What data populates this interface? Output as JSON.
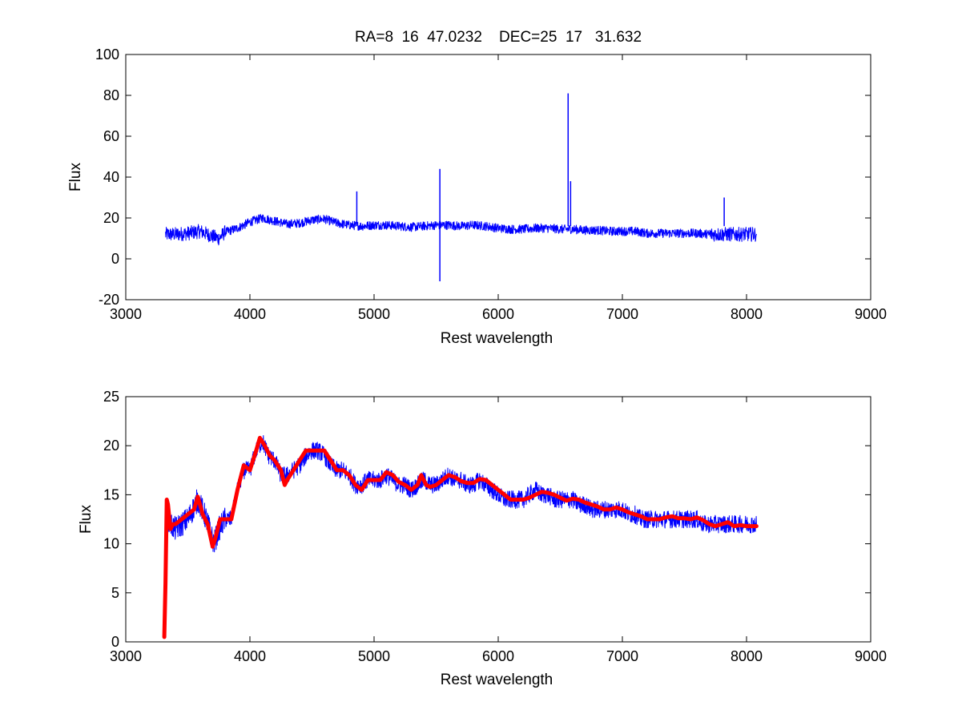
{
  "figure": {
    "title": "RA=8  16  47.0232    DEC=25  17   31.632"
  },
  "colors": {
    "spectrum": "#0000ff",
    "fit": "#ff0000",
    "axes": "#000000",
    "background": "#ffffff"
  },
  "chart_data": [
    {
      "type": "line",
      "title": "RA=8  16  47.0232    DEC=25  17   31.632",
      "xlabel": "Rest wavelength",
      "ylabel": "Flux",
      "xlim": [
        3000,
        9000
      ],
      "ylim": [
        -20,
        100
      ],
      "xticks": [
        3000,
        4000,
        5000,
        6000,
        7000,
        8000,
        9000
      ],
      "yticks": [
        -20,
        0,
        20,
        40,
        60,
        80,
        100
      ],
      "grid": false,
      "series": [
        {
          "color": "#0000ff",
          "x": [
            3320,
            3400,
            3500,
            3600,
            3700,
            3750,
            3800,
            3900,
            4000,
            4100,
            4200,
            4300,
            4400,
            4500,
            4600,
            4700,
            4800,
            4900,
            5000,
            5100,
            5200,
            5300,
            5400,
            5500,
            5600,
            5700,
            5800,
            5900,
            6000,
            6100,
            6200,
            6300,
            6400,
            6500,
            6600,
            6700,
            6800,
            6900,
            7000,
            7100,
            7200,
            7300,
            7400,
            7500,
            7600,
            7700,
            7800,
            7900,
            8000,
            8080
          ],
          "y": [
            12,
            12,
            12.5,
            13.5,
            11,
            10,
            13,
            15,
            18,
            20,
            18.5,
            17,
            17.5,
            19,
            19.5,
            17.5,
            16.5,
            16,
            16.5,
            16.5,
            16,
            15.5,
            16,
            16.5,
            16.5,
            16,
            16.5,
            16,
            15,
            14.5,
            14.5,
            15,
            15,
            14.5,
            14.5,
            14,
            14,
            13.5,
            13.5,
            13.5,
            12.5,
            12.5,
            12.5,
            12.5,
            12.5,
            12,
            12,
            12,
            12,
            12
          ],
          "spikes": [
            {
              "x": 4861,
              "y": 33
            },
            {
              "x": 5530,
              "y": 44
            },
            {
              "x": 5530,
              "y": -11
            },
            {
              "x": 6563,
              "y": 81
            },
            {
              "x": 6583,
              "y": 38
            },
            {
              "x": 7820,
              "y": 30
            }
          ]
        }
      ]
    },
    {
      "type": "line",
      "xlabel": "Rest wavelength",
      "ylabel": "Flux",
      "xlim": [
        3000,
        9000
      ],
      "ylim": [
        0,
        25
      ],
      "xticks": [
        3000,
        4000,
        5000,
        6000,
        7000,
        8000,
        9000
      ],
      "yticks": [
        0,
        5,
        10,
        15,
        20,
        25
      ],
      "grid": false,
      "series": [
        {
          "color": "#0000ff",
          "noise": 0.9,
          "x": [
            3320,
            3360,
            3400,
            3500,
            3580,
            3650,
            3710,
            3750,
            3800,
            3850,
            3900,
            3950,
            4000,
            4050,
            4100,
            4150,
            4200,
            4250,
            4300,
            4350,
            4400,
            4450,
            4500,
            4550,
            4600,
            4650,
            4700,
            4750,
            4800,
            4850,
            4900,
            4950,
            5000,
            5050,
            5100,
            5150,
            5200,
            5250,
            5300,
            5350,
            5400,
            5450,
            5500,
            5550,
            5600,
            5650,
            5700,
            5750,
            5800,
            5850,
            5900,
            5950,
            6000,
            6050,
            6100,
            6150,
            6200,
            6250,
            6300,
            6350,
            6400,
            6450,
            6500,
            6550,
            6600,
            6650,
            6700,
            6750,
            6800,
            6850,
            6900,
            6950,
            7000,
            7050,
            7100,
            7150,
            7200,
            7250,
            7300,
            7350,
            7400,
            7450,
            7500,
            7550,
            7600,
            7650,
            7700,
            7750,
            7800,
            7850,
            7900,
            7950,
            8000,
            8080
          ],
          "y": [
            13,
            12,
            11.5,
            12.5,
            14.5,
            12.5,
            10,
            11.5,
            12.5,
            12.5,
            15.5,
            17.5,
            17.5,
            19.5,
            20.5,
            19,
            18.5,
            17,
            17,
            17.5,
            18,
            19,
            19.5,
            19.5,
            19,
            18,
            17.5,
            17.5,
            17,
            16,
            16,
            16.5,
            16.5,
            16.5,
            17,
            16.5,
            16,
            16,
            15.5,
            16,
            16.5,
            16,
            16,
            16.5,
            17,
            16.5,
            16.5,
            16,
            16,
            16.5,
            16,
            15.5,
            15,
            14.5,
            14.5,
            14.5,
            14.5,
            15,
            15.5,
            15,
            15,
            14.5,
            14.5,
            14.5,
            14.5,
            14,
            14,
            13.5,
            13.5,
            13.5,
            13.5,
            13.5,
            13.5,
            13,
            13,
            12.5,
            12.5,
            12.5,
            12.5,
            12.5,
            12.5,
            12.5,
            12.5,
            12.5,
            12.5,
            12,
            12,
            12,
            12,
            12,
            12,
            12,
            12,
            12
          ]
        },
        {
          "color": "#ff0000",
          "x": [
            3310,
            3320,
            3330,
            3340,
            3360,
            3380,
            3400,
            3450,
            3500,
            3550,
            3580,
            3620,
            3660,
            3700,
            3720,
            3760,
            3800,
            3850,
            3900,
            3950,
            4000,
            4050,
            4080,
            4120,
            4160,
            4200,
            4250,
            4280,
            4300,
            4350,
            4400,
            4450,
            4500,
            4550,
            4600,
            4650,
            4700,
            4750,
            4800,
            4850,
            4900,
            4950,
            5000,
            5050,
            5100,
            5150,
            5200,
            5250,
            5300,
            5350,
            5380,
            5420,
            5450,
            5500,
            5550,
            5600,
            5650,
            5700,
            5750,
            5800,
            5850,
            5900,
            5950,
            6000,
            6050,
            6100,
            6150,
            6200,
            6250,
            6300,
            6350,
            6400,
            6450,
            6500,
            6550,
            6600,
            6650,
            6700,
            6750,
            6800,
            6850,
            6900,
            6950,
            7000,
            7050,
            7100,
            7150,
            7200,
            7250,
            7300,
            7350,
            7400,
            7450,
            7500,
            7550,
            7600,
            7650,
            7700,
            7750,
            7800,
            7850,
            7900,
            7950,
            8000,
            8080
          ],
          "y": [
            0.5,
            6,
            14.5,
            14,
            11.5,
            12,
            12,
            12.5,
            13,
            13.5,
            14.8,
            13,
            12,
            9.7,
            10.5,
            12.5,
            12.5,
            12.5,
            15.5,
            18,
            17.5,
            19.5,
            20.8,
            20,
            19,
            18.5,
            17.5,
            16,
            16.5,
            17.5,
            18.5,
            19.5,
            19.5,
            19.5,
            19.5,
            18.5,
            17.5,
            17.5,
            17,
            16,
            15.5,
            16.5,
            16.5,
            16.5,
            17.3,
            17,
            16.3,
            16,
            15.5,
            16,
            17,
            16,
            15.8,
            16,
            16.5,
            17,
            16.8,
            16.4,
            16.2,
            16.2,
            16.6,
            16.5,
            16,
            15.5,
            15,
            14.5,
            14.5,
            14.5,
            14.7,
            15,
            15.3,
            15.2,
            15,
            14.7,
            14.4,
            14.6,
            14.5,
            14.2,
            14,
            13.8,
            13.5,
            13.5,
            13.7,
            13.5,
            13.2,
            13,
            12.8,
            12.5,
            12.5,
            12.5,
            12.7,
            12.8,
            12.6,
            12.6,
            12.5,
            12.7,
            12.4,
            12,
            11.8,
            12,
            12.2,
            11.8,
            11.9,
            11.8,
            11.8
          ]
        }
      ]
    }
  ]
}
